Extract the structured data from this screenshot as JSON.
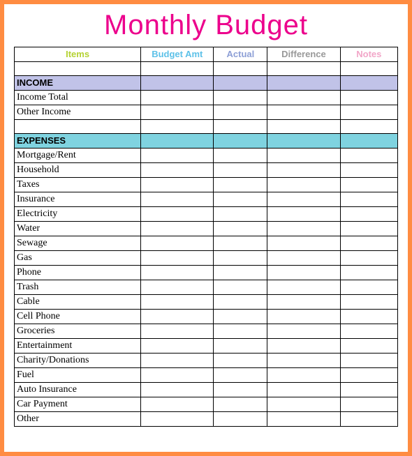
{
  "title": "Monthly Budget",
  "headers": {
    "items": "Items",
    "budget": "Budget Amt",
    "actual": "Actual",
    "diff": "Difference",
    "notes": "Notes"
  },
  "colors": {
    "border": "#ff8c42",
    "title": "#ec008c",
    "income_bg": "#c1c3e8",
    "expenses_bg": "#7fd3e0",
    "header_items": "#b5d233",
    "header_budget": "#5dc1e8",
    "header_actual": "#8d9fd6",
    "header_diff": "#999999",
    "header_notes": "#f2a6c8"
  },
  "income": {
    "section": "INCOME",
    "rows": [
      "Income Total",
      "Other Income"
    ]
  },
  "expenses": {
    "section": "EXPENSES",
    "rows": [
      "Mortgage/Rent",
      "Household",
      "Taxes",
      "Insurance",
      "Electricity",
      "Water",
      "Sewage",
      "Gas",
      "Phone",
      "Trash",
      "Cable",
      "Cell Phone",
      "Groceries",
      "Entertainment",
      "Charity/Donations",
      "Fuel",
      "Auto Insurance",
      "Car Payment",
      "Other"
    ]
  }
}
